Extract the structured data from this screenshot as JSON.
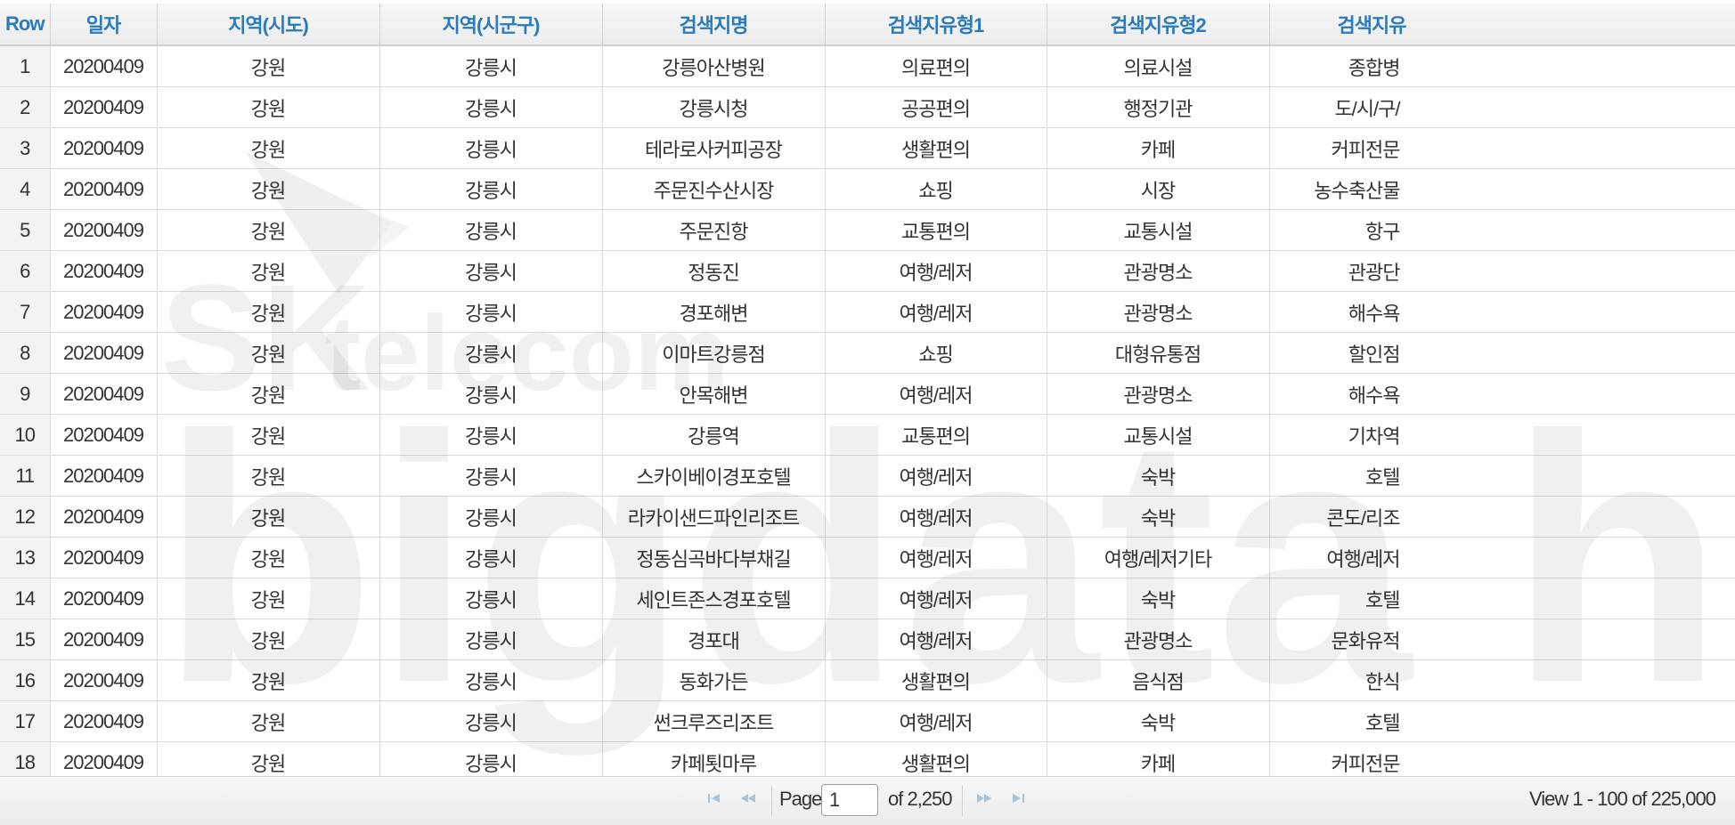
{
  "grid": {
    "columns": [
      {
        "label": "Row",
        "cls": "col-row"
      },
      {
        "label": "일자"
      },
      {
        "label": "지역(시도)"
      },
      {
        "label": "지역(시군구)"
      },
      {
        "label": "검색지명"
      },
      {
        "label": "검색지유형1"
      },
      {
        "label": "검색지유형2"
      },
      {
        "label": "검색지유"
      }
    ],
    "rows": [
      [
        "1",
        "20200409",
        "강원",
        "강릉시",
        "강릉아산병원",
        "의료편의",
        "의료시설",
        "종합병"
      ],
      [
        "2",
        "20200409",
        "강원",
        "강릉시",
        "강릉시청",
        "공공편의",
        "행정기관",
        "도/시/구/"
      ],
      [
        "3",
        "20200409",
        "강원",
        "강릉시",
        "테라로사커피공장",
        "생활편의",
        "카페",
        "커피전문"
      ],
      [
        "4",
        "20200409",
        "강원",
        "강릉시",
        "주문진수산시장",
        "쇼핑",
        "시장",
        "농수축산물"
      ],
      [
        "5",
        "20200409",
        "강원",
        "강릉시",
        "주문진항",
        "교통편의",
        "교통시설",
        "항구"
      ],
      [
        "6",
        "20200409",
        "강원",
        "강릉시",
        "정동진",
        "여행/레저",
        "관광명소",
        "관광단"
      ],
      [
        "7",
        "20200409",
        "강원",
        "강릉시",
        "경포해변",
        "여행/레저",
        "관광명소",
        "해수욕"
      ],
      [
        "8",
        "20200409",
        "강원",
        "강릉시",
        "이마트강릉점",
        "쇼핑",
        "대형유통점",
        "할인점"
      ],
      [
        "9",
        "20200409",
        "강원",
        "강릉시",
        "안목해변",
        "여행/레저",
        "관광명소",
        "해수욕"
      ],
      [
        "10",
        "20200409",
        "강원",
        "강릉시",
        "강릉역",
        "교통편의",
        "교통시설",
        "기차역"
      ],
      [
        "11",
        "20200409",
        "강원",
        "강릉시",
        "스카이베이경포호텔",
        "여행/레저",
        "숙박",
        "호텔"
      ],
      [
        "12",
        "20200409",
        "강원",
        "강릉시",
        "라카이샌드파인리조트",
        "여행/레저",
        "숙박",
        "콘도/리조"
      ],
      [
        "13",
        "20200409",
        "강원",
        "강릉시",
        "정동심곡바다부채길",
        "여행/레저",
        "여행/레저기타",
        "여행/레저"
      ],
      [
        "14",
        "20200409",
        "강원",
        "강릉시",
        "세인트존스경포호텔",
        "여행/레저",
        "숙박",
        "호텔"
      ],
      [
        "15",
        "20200409",
        "강원",
        "강릉시",
        "경포대",
        "여행/레저",
        "관광명소",
        "문화유적"
      ],
      [
        "16",
        "20200409",
        "강원",
        "강릉시",
        "동화가든",
        "생활편의",
        "음식점",
        "한식"
      ],
      [
        "17",
        "20200409",
        "강원",
        "강릉시",
        "썬크루즈리조트",
        "여행/레저",
        "숙박",
        "호텔"
      ],
      [
        "18",
        "20200409",
        "강원",
        "강릉시",
        "카페툇마루",
        "생활편의",
        "카페",
        "커피전문"
      ]
    ]
  },
  "pager": {
    "page_label": "Page",
    "page_value": "1",
    "of_label": "of 2,250",
    "view_label": "View 1 - 100 of 225,000"
  },
  "watermark": {
    "line1": "SK telecom",
    "line2": "bigdata hub"
  }
}
